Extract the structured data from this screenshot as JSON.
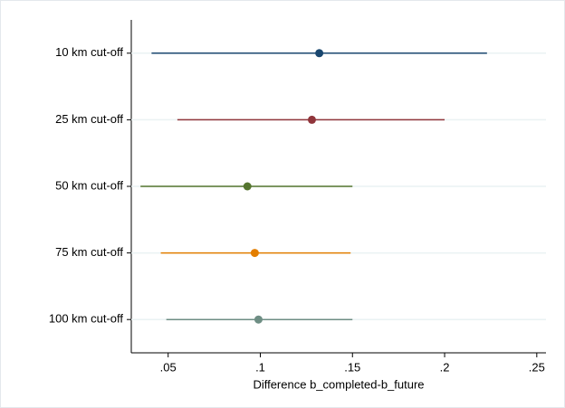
{
  "chart_data": {
    "type": "dot_range",
    "x_label": "Difference b_completed-b_future",
    "categories": [
      "10 km cut-off",
      "25 km cut-off",
      "50 km cut-off",
      "75 km cut-off",
      "100 km cut-off"
    ],
    "values": [
      0.132,
      0.128,
      0.093,
      0.097,
      0.099
    ],
    "low": [
      0.041,
      0.055,
      0.035,
      0.046,
      0.049
    ],
    "high": [
      0.223,
      0.2,
      0.15,
      0.149,
      0.15
    ],
    "colors": [
      "#1a476f",
      "#90353b",
      "#55752f",
      "#e37e00",
      "#6e8e84"
    ],
    "xlim": [
      0.03,
      0.255
    ],
    "xticks": [
      {
        "value": 0.05,
        "label": ".05"
      },
      {
        "value": 0.1,
        "label": ".1"
      },
      {
        "value": 0.15,
        "label": ".15"
      },
      {
        "value": 0.2,
        "label": ".2"
      },
      {
        "value": 0.25,
        "label": ".25"
      }
    ],
    "grid": true
  }
}
